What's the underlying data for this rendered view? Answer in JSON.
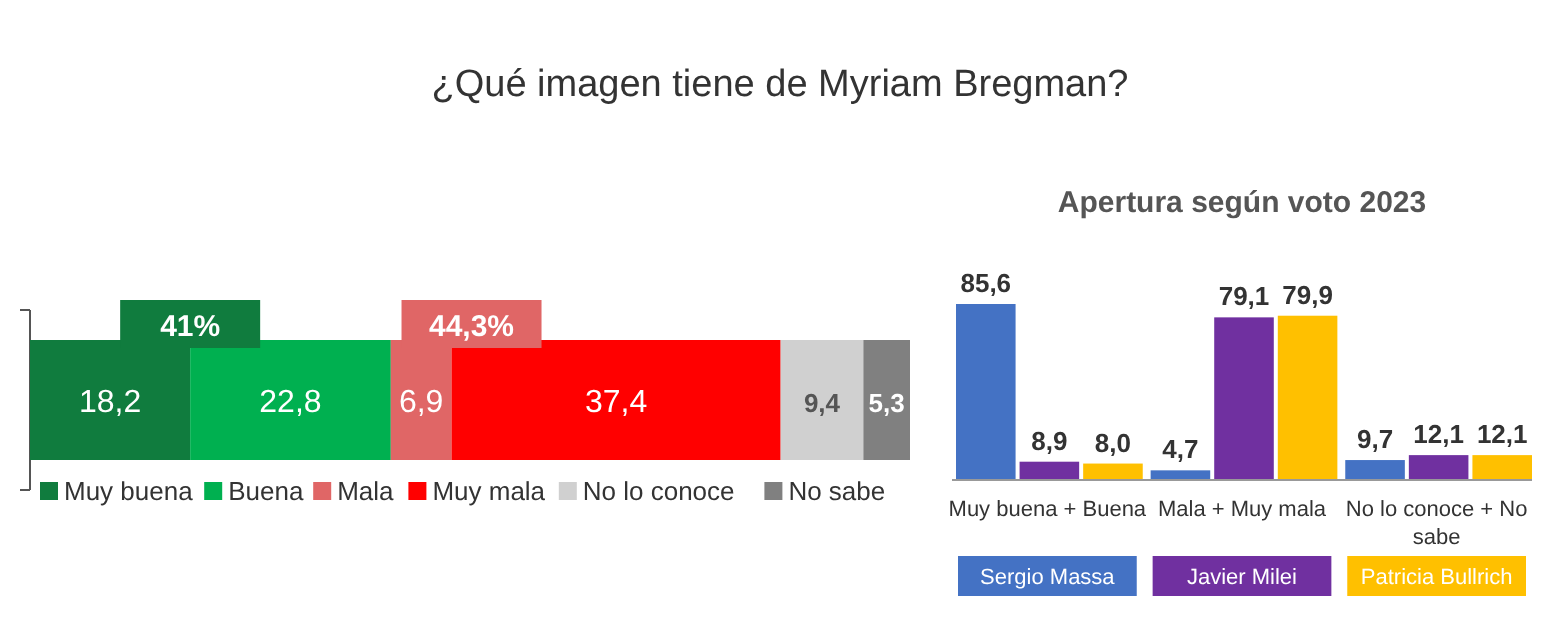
{
  "chart_data": [
    {
      "type": "bar",
      "title": "¿Qué imagen tiene de Myriam Bregman?",
      "orientation": "horizontal",
      "stacked": true,
      "categories": [
        null
      ],
      "legend": "bottom",
      "series": [
        {
          "name": "Muy buena",
          "color": "#107c3e",
          "values": [
            18.2
          ],
          "value_labels": [
            "18,2"
          ]
        },
        {
          "name": "Buena",
          "color": "#00b050",
          "values": [
            22.8
          ],
          "value_labels": [
            "22,8"
          ]
        },
        {
          "name": "Mala",
          "color": "#e06666",
          "values": [
            6.9
          ],
          "value_labels": [
            "6,9"
          ]
        },
        {
          "name": "Muy mala",
          "color": "#ff0000",
          "values": [
            37.4
          ],
          "value_labels": [
            "37,4"
          ]
        },
        {
          "name": "No lo conoce",
          "color": "#d0d0d0",
          "values": [
            9.4
          ],
          "value_labels": [
            "9,4"
          ]
        },
        {
          "name": "No sabe",
          "color": "#808080",
          "values": [
            5.3
          ],
          "value_labels": [
            "5,3"
          ]
        }
      ],
      "annotations": [
        "41%",
        "44,3%"
      ]
    },
    {
      "type": "bar",
      "title": "Apertura según voto 2023",
      "categories": [
        "Muy buena + Buena",
        "Mala + Muy mala",
        "No lo conoce + No sabe"
      ],
      "legend": "bottom",
      "series": [
        {
          "name": "Sergio Massa",
          "color": "#4472c4",
          "values": [
            85.6,
            4.7,
            9.7
          ],
          "value_labels": [
            "85,6",
            "4,7",
            "9,7"
          ]
        },
        {
          "name": "Javier Milei",
          "color": "#7030a0",
          "values": [
            8.9,
            79.1,
            12.1
          ],
          "value_labels": [
            "8,9",
            "79,1",
            "12,1"
          ]
        },
        {
          "name": "Patricia Bullrich",
          "color": "#ffc000",
          "values": [
            8.0,
            79.9,
            12.1
          ],
          "value_labels": [
            "8,0",
            "79,9",
            "12,1"
          ]
        }
      ]
    }
  ]
}
